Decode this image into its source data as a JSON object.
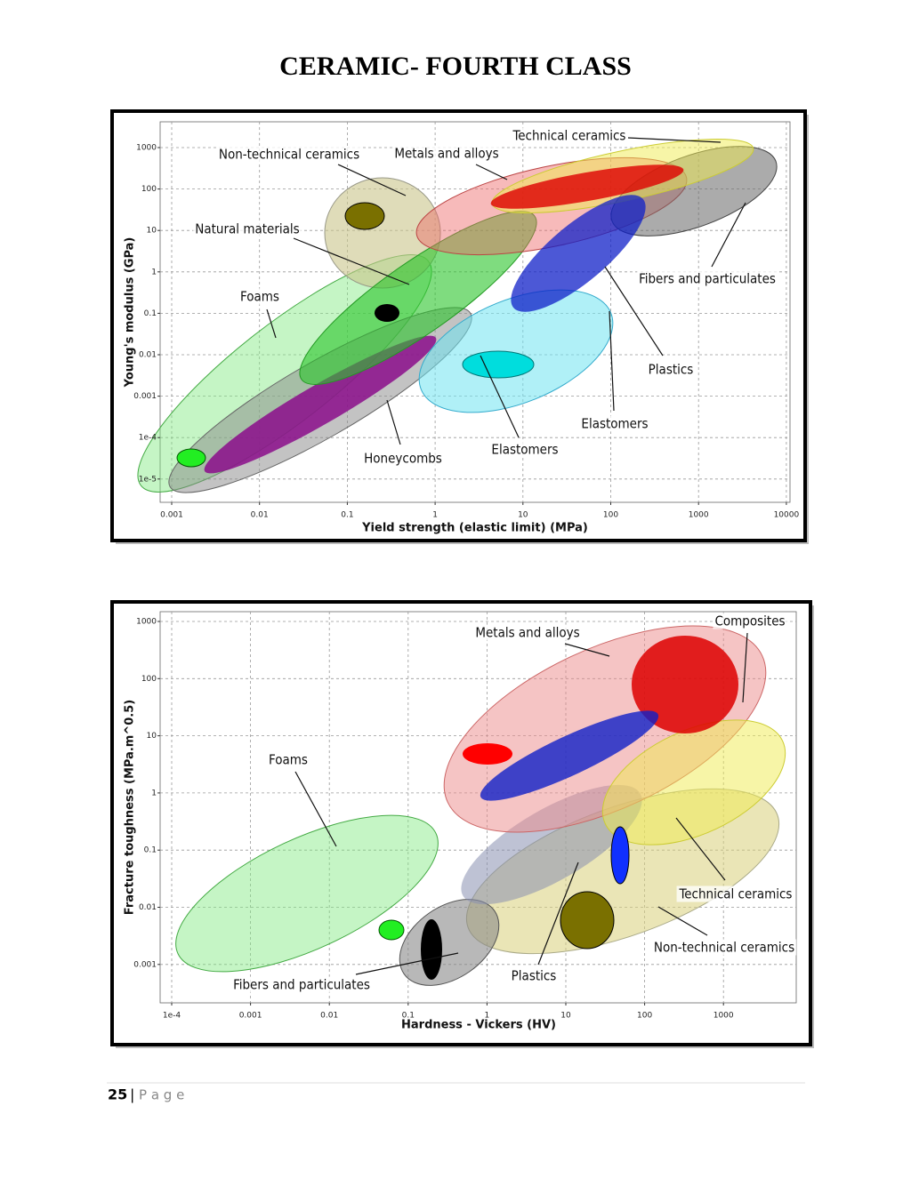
{
  "header": {
    "title": "CERAMIC- FOURTH CLASS"
  },
  "figures": [
    {
      "y_axis_label": "Young's modulus (GPa)",
      "x_axis_label": "Yield strength (elastic limit) (MPa)",
      "y_ticks": [
        "1000",
        "100",
        "10",
        "1",
        "0.1",
        "0.01",
        "0.001",
        "1e-4",
        "1e-5"
      ],
      "x_ticks": [
        "0.001",
        "0.01",
        "0.1",
        "1",
        "10",
        "100",
        "1000",
        "10000"
      ],
      "annotations": [
        "Technical ceramics",
        "Non-technical ceramics",
        "Metals and alloys",
        "Natural materials",
        "Foams",
        "Fibers and particulates",
        "Plastics",
        "Elastomers",
        "Elastomers",
        "Honeycombs"
      ]
    },
    {
      "y_axis_label": "Fracture toughness (MPa.m^0.5)",
      "x_axis_label": "Hardness - Vickers (HV)",
      "y_ticks": [
        "1000",
        "100",
        "10",
        "1",
        "0.1",
        "0.01",
        "0.001"
      ],
      "x_ticks": [
        "1e-4",
        "0.001",
        "0.01",
        "0.1",
        "1",
        "10",
        "100",
        "1000"
      ],
      "annotations": [
        "Metals and alloys",
        "Composites",
        "Foams",
        "Technical ceramics",
        "Non-technical ceramics",
        "Plastics",
        "Fibers and particulates"
      ]
    }
  ],
  "footer": {
    "page_number": "25",
    "separator": "|",
    "label": "P a g e"
  }
}
